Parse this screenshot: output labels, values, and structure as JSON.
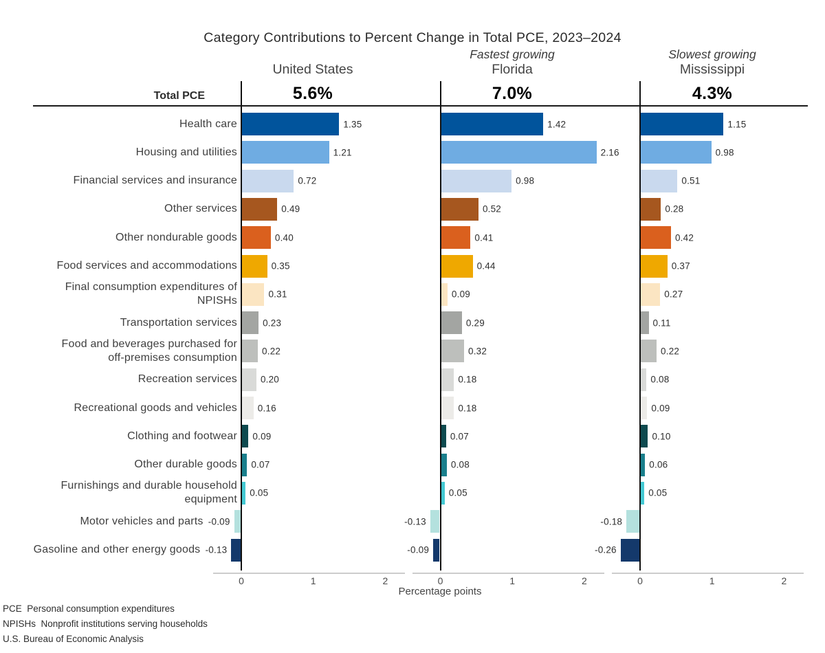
{
  "title": "Category Contributions to Percent Change in Total PCE, 2023–2024",
  "total_row_label": "Total PCE",
  "chart_data": {
    "type": "bar",
    "orientation": "horizontal",
    "title": "Category Contributions to Percent Change in Total PCE, 2023–2024",
    "xlabel": "Percentage points",
    "x_ticks": [
      0,
      1,
      2
    ],
    "xlim": [
      -0.4,
      2.3
    ],
    "grid": false,
    "legend": "none",
    "panels": [
      {
        "annotation": "",
        "name": "United States",
        "total": "5.6%"
      },
      {
        "annotation": "Fastest growing",
        "name": "Florida",
        "total": "7.0%"
      },
      {
        "annotation": "Slowest growing",
        "name": "Mississippi",
        "total": "4.3%"
      }
    ],
    "categories": [
      "Health care",
      "Housing and utilities",
      "Financial services and insurance",
      "Other services",
      "Other nondurable goods",
      "Food services and accommodations",
      "Final consumption expenditures of\nNPISHs",
      "Transportation services",
      "Food and beverages purchased for\noff-premises consumption",
      "Recreation services",
      "Recreational goods and vehicles",
      "Clothing and footwear",
      "Other durable goods",
      "Furnishings and durable household\nequipment",
      "Motor vehicles and parts",
      "Gasoline and other energy goods"
    ],
    "bar_colors": [
      "#01549C",
      "#6FACE2",
      "#C9D9EE",
      "#A6571F",
      "#DA601E",
      "#EFA800",
      "#FBE5C2",
      "#A3A5A2",
      "#BDBFBC",
      "#D9DAD8",
      "#ECEBE8",
      "#0E4A4F",
      "#1A7F8C",
      "#43C8D2",
      "#B4E1DE",
      "#14396B"
    ],
    "series": [
      {
        "name": "United States",
        "values": [
          1.35,
          1.21,
          0.72,
          0.49,
          0.4,
          0.35,
          0.31,
          0.23,
          0.22,
          0.2,
          0.16,
          0.09,
          0.07,
          0.05,
          -0.09,
          -0.13
        ]
      },
      {
        "name": "Florida",
        "values": [
          1.42,
          2.16,
          0.98,
          0.52,
          0.41,
          0.44,
          0.09,
          0.29,
          0.32,
          0.18,
          0.18,
          0.07,
          0.08,
          0.05,
          -0.13,
          -0.09
        ]
      },
      {
        "name": "Mississippi",
        "values": [
          1.15,
          0.98,
          0.51,
          0.28,
          0.42,
          0.37,
          0.27,
          0.11,
          0.22,
          0.08,
          0.09,
          0.1,
          0.06,
          0.05,
          -0.18,
          -0.26
        ]
      }
    ]
  },
  "footnotes": [
    "PCE  Personal consumption expenditures",
    "NPISHs  Nonprofit institutions serving households",
    "U.S. Bureau of Economic Analysis"
  ]
}
